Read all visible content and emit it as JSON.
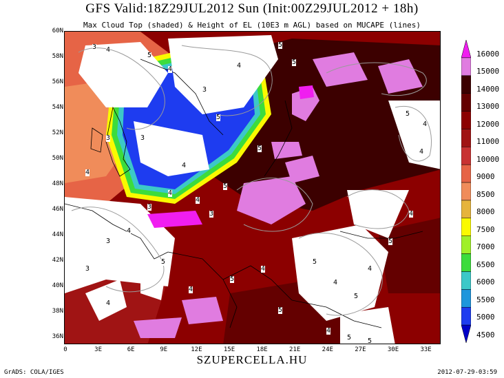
{
  "title": "GFS Valid:18Z29JUL2012 Sun (Init:00Z29JUL2012 + 18h)",
  "subtitle": "Max Cloud Top (shaded) & Height of EL (10E3 m AGL) based on MUCAPE (lines)",
  "watermark": "SZUPERCELLA.HU",
  "footer_left": "GrADS: COLA/IGES",
  "footer_right": "2012-07-29-03:59",
  "lat_labels": [
    "60N",
    "58N",
    "56N",
    "54N",
    "52N",
    "50N",
    "48N",
    "46N",
    "44N",
    "42N",
    "40N",
    "38N",
    "36N"
  ],
  "lon_labels": [
    "0",
    "3E",
    "6E",
    "9E",
    "12E",
    "15E",
    "18E",
    "21E",
    "24E",
    "27E",
    "30E",
    "33E"
  ],
  "colorbar": {
    "labels": [
      "16000",
      "15000",
      "14000",
      "13000",
      "12000",
      "11000",
      "10000",
      "9000",
      "8500",
      "8000",
      "7500",
      "7000",
      "6500",
      "6000",
      "5500",
      "5000",
      "4500"
    ],
    "colors": [
      "#f01ef0",
      "#e07ce0",
      "#3c0000",
      "#640000",
      "#8c0000",
      "#a01414",
      "#c83232",
      "#e66446",
      "#f08c5a",
      "#e6b43c",
      "#fafa00",
      "#a0f028",
      "#3cdc3c",
      "#3cc8c8",
      "#1e96dc",
      "#1e3cf0",
      "#0000c8"
    ]
  },
  "contour_labels": [
    "3",
    "4",
    "5"
  ]
}
